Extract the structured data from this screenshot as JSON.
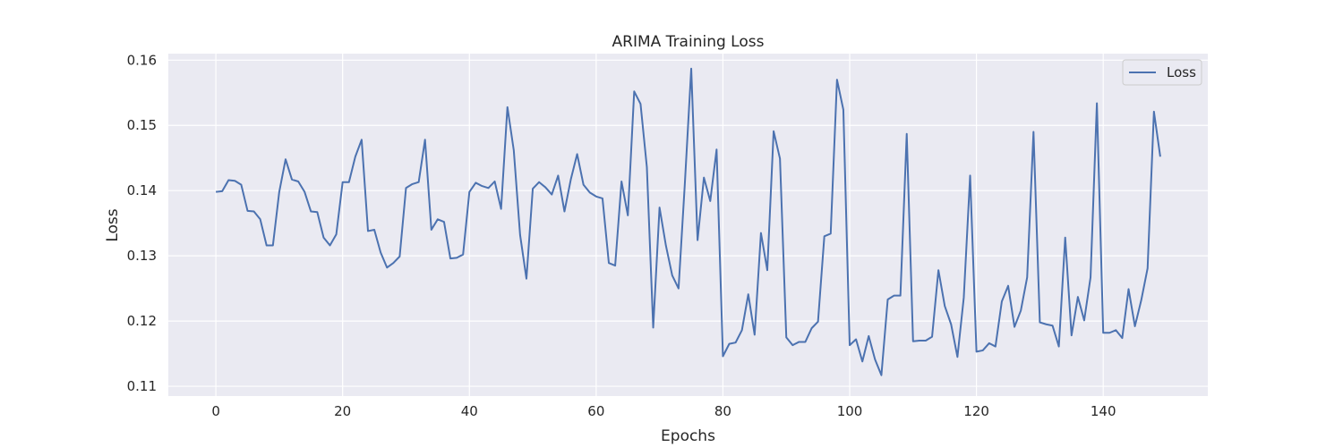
{
  "chart_data": {
    "type": "line",
    "title": "ARIMA Training Loss",
    "xlabel": "Epochs",
    "ylabel": "Loss",
    "xlim": [
      -7.5,
      156.5
    ],
    "ylim": [
      0.1085,
      0.161
    ],
    "xticks": [
      0,
      20,
      40,
      60,
      80,
      100,
      120,
      140
    ],
    "xtick_labels": [
      "0",
      "20",
      "40",
      "60",
      "80",
      "100",
      "120",
      "140"
    ],
    "yticks": [
      0.11,
      0.12,
      0.13,
      0.14,
      0.15,
      0.16
    ],
    "ytick_labels": [
      "0.11",
      "0.12",
      "0.13",
      "0.14",
      "0.15",
      "0.16"
    ],
    "grid": true,
    "legend_position": "top-right",
    "colors": {
      "background": "#eaeaf2",
      "grid": "#ffffff",
      "line": "#4c72b0"
    },
    "series": [
      {
        "name": "Loss",
        "x": [
          0,
          1,
          2,
          3,
          4,
          5,
          6,
          7,
          8,
          9,
          10,
          11,
          12,
          13,
          14,
          15,
          16,
          17,
          18,
          19,
          20,
          21,
          22,
          23,
          24,
          25,
          26,
          27,
          28,
          29,
          30,
          31,
          32,
          33,
          34,
          35,
          36,
          37,
          38,
          39,
          40,
          41,
          42,
          43,
          44,
          45,
          46,
          47,
          48,
          49,
          50,
          51,
          52,
          53,
          54,
          55,
          56,
          57,
          58,
          59,
          60,
          61,
          62,
          63,
          64,
          65,
          66,
          67,
          68,
          69,
          70,
          71,
          72,
          73,
          74,
          75,
          76,
          77,
          78,
          79,
          80,
          81,
          82,
          83,
          84,
          85,
          86,
          87,
          88,
          89,
          90,
          91,
          92,
          93,
          94,
          95,
          96,
          97,
          98,
          99,
          100,
          101,
          102,
          103,
          104,
          105,
          106,
          107,
          108,
          109,
          110,
          111,
          112,
          113,
          114,
          115,
          116,
          117,
          118,
          119,
          120,
          121,
          122,
          123,
          124,
          125,
          126,
          127,
          128,
          129,
          130,
          131,
          132,
          133,
          134,
          135,
          136,
          137,
          138,
          139,
          140,
          141,
          142,
          143,
          144,
          145,
          146,
          147,
          148,
          149
        ],
        "values": [
          0.1398,
          0.1399,
          0.1416,
          0.1415,
          0.1409,
          0.1369,
          0.1368,
          0.1356,
          0.1316,
          0.1316,
          0.1398,
          0.1448,
          0.1417,
          0.1414,
          0.1398,
          0.1368,
          0.1367,
          0.1328,
          0.1316,
          0.1333,
          0.1413,
          0.1413,
          0.1452,
          0.1478,
          0.1338,
          0.134,
          0.1305,
          0.1282,
          0.1289,
          0.1299,
          0.1404,
          0.141,
          0.1413,
          0.1478,
          0.134,
          0.1356,
          0.1352,
          0.1296,
          0.1297,
          0.1302,
          0.1398,
          0.1412,
          0.1407,
          0.1404,
          0.1414,
          0.1372,
          0.1528,
          0.1462,
          0.1332,
          0.1265,
          0.1403,
          0.1413,
          0.1405,
          0.1394,
          0.1423,
          0.1368,
          0.1417,
          0.1456,
          0.1409,
          0.1397,
          0.1391,
          0.1388,
          0.1289,
          0.1285,
          0.1414,
          0.1362,
          0.1552,
          0.1533,
          0.1436,
          0.119,
          0.1374,
          0.1316,
          0.127,
          0.125,
          0.1412,
          0.1587,
          0.1324,
          0.142,
          0.1384,
          0.1463,
          0.1146,
          0.1165,
          0.1167,
          0.1186,
          0.1241,
          0.1179,
          0.1335,
          0.1278,
          0.1491,
          0.1449,
          0.1175,
          0.1163,
          0.1168,
          0.1168,
          0.1189,
          0.1199,
          0.133,
          0.1334,
          0.157,
          0.1524,
          0.1163,
          0.1172,
          0.1138,
          0.1177,
          0.1141,
          0.1117,
          0.1233,
          0.1239,
          0.1239,
          0.1487,
          0.1169,
          0.117,
          0.117,
          0.1176,
          0.1278,
          0.1223,
          0.1195,
          0.1145,
          0.1236,
          0.1423,
          0.1153,
          0.1155,
          0.1166,
          0.1161,
          0.123,
          0.1254,
          0.1191,
          0.1216,
          0.1267,
          0.149,
          0.1198,
          0.1195,
          0.1193,
          0.1161,
          0.1328,
          0.1178,
          0.1237,
          0.1201,
          0.1267,
          0.1534,
          0.1182,
          0.1182,
          0.1186,
          0.1174,
          0.1249,
          0.1192,
          0.1232,
          0.1281,
          0.1521,
          0.1452
        ]
      }
    ]
  }
}
